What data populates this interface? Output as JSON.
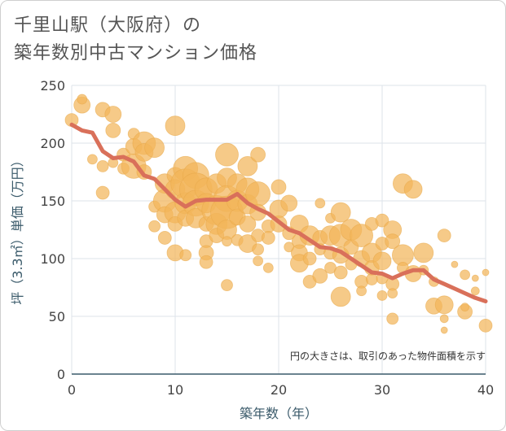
{
  "chart_data": {
    "type": "scatter",
    "title_line1": "千里山駅（大阪府）の",
    "title_line2": "築年数別中古マンション価格",
    "xlabel": "築年数（年）",
    "ylabel": "坪（3.3㎡）単価（万円）",
    "note": "円の大きさは、取引のあった物件面積を示す",
    "xlim": [
      0,
      40
    ],
    "ylim": [
      0,
      250
    ],
    "x_ticks": [
      "0",
      "10",
      "20",
      "30",
      "40"
    ],
    "y_ticks": [
      "0",
      "50",
      "100",
      "150",
      "200",
      "250"
    ],
    "grid": true,
    "colors": {
      "bubble": "#f2b55a",
      "trend": "#d9705a",
      "grid": "#dde3ea",
      "axis": "#3a5a6a"
    },
    "trend": {
      "x": [
        0,
        1,
        2,
        3,
        4,
        5,
        6,
        7,
        8,
        9,
        10,
        11,
        12,
        13,
        14,
        15,
        16,
        17,
        18,
        19,
        20,
        21,
        22,
        23,
        24,
        25,
        26,
        27,
        28,
        29,
        30,
        31,
        32,
        33,
        34,
        35,
        36,
        37,
        38,
        39,
        40
      ],
      "y": [
        216,
        211,
        209,
        193,
        187,
        188,
        184,
        172,
        169,
        160,
        151,
        145,
        150,
        151,
        151,
        151,
        156,
        148,
        143,
        139,
        132,
        125,
        122,
        116,
        110,
        109,
        106,
        100,
        94,
        88,
        87,
        83,
        87,
        90,
        90,
        82,
        78,
        74,
        70,
        66,
        63
      ]
    },
    "bubbles": [
      [
        0,
        220,
        8
      ],
      [
        1,
        233,
        10
      ],
      [
        1,
        238,
        6
      ],
      [
        2,
        186,
        6
      ],
      [
        3,
        229,
        9
      ],
      [
        3,
        180,
        7
      ],
      [
        3,
        157,
        8
      ],
      [
        4,
        225,
        10
      ],
      [
        4,
        211,
        9
      ],
      [
        4,
        183,
        6
      ],
      [
        5,
        190,
        8
      ],
      [
        5,
        178,
        7
      ],
      [
        6,
        208,
        7
      ],
      [
        6,
        197,
        10
      ],
      [
        6,
        180,
        15
      ],
      [
        7,
        200,
        14
      ],
      [
        7,
        192,
        11
      ],
      [
        7,
        175,
        9
      ],
      [
        8,
        196,
        12
      ],
      [
        8,
        145,
        7
      ],
      [
        8,
        128,
        7
      ],
      [
        9,
        165,
        12
      ],
      [
        9,
        150,
        14
      ],
      [
        9,
        138,
        10
      ],
      [
        9,
        118,
        8
      ],
      [
        10,
        215,
        12
      ],
      [
        10,
        172,
        10
      ],
      [
        10,
        160,
        12
      ],
      [
        10,
        140,
        13
      ],
      [
        10,
        130,
        9
      ],
      [
        10,
        105,
        10
      ],
      [
        11,
        178,
        15
      ],
      [
        11,
        165,
        18
      ],
      [
        11,
        148,
        13
      ],
      [
        11,
        135,
        10
      ],
      [
        11,
        103,
        7
      ],
      [
        12,
        172,
        16
      ],
      [
        12,
        160,
        20
      ],
      [
        12,
        148,
        16
      ],
      [
        12,
        135,
        12
      ],
      [
        13,
        160,
        14
      ],
      [
        13,
        148,
        12
      ],
      [
        13,
        130,
        9
      ],
      [
        13,
        115,
        8
      ],
      [
        13,
        105,
        9
      ],
      [
        13,
        97,
        8
      ],
      [
        14,
        165,
        12
      ],
      [
        14,
        142,
        18
      ],
      [
        14,
        130,
        13
      ],
      [
        14,
        120,
        9
      ],
      [
        15,
        190,
        14
      ],
      [
        15,
        170,
        12
      ],
      [
        15,
        152,
        16
      ],
      [
        15,
        140,
        20
      ],
      [
        15,
        125,
        12
      ],
      [
        15,
        115,
        6
      ],
      [
        15,
        77,
        7
      ],
      [
        16,
        165,
        12
      ],
      [
        16,
        150,
        13
      ],
      [
        16,
        136,
        10
      ],
      [
        16,
        116,
        7
      ],
      [
        17,
        180,
        12
      ],
      [
        17,
        160,
        14
      ],
      [
        17,
        147,
        12
      ],
      [
        17,
        130,
        10
      ],
      [
        17,
        113,
        11
      ],
      [
        18,
        190,
        9
      ],
      [
        18,
        156,
        15
      ],
      [
        18,
        140,
        10
      ],
      [
        18,
        120,
        8
      ],
      [
        18,
        108,
        7
      ],
      [
        18,
        98,
        6
      ],
      [
        19,
        128,
        8
      ],
      [
        19,
        118,
        8
      ],
      [
        19,
        92,
        6
      ],
      [
        20,
        162,
        9
      ],
      [
        20,
        143,
        11
      ],
      [
        20,
        130,
        10
      ],
      [
        21,
        148,
        10
      ],
      [
        21,
        122,
        8
      ],
      [
        21,
        110,
        6
      ],
      [
        22,
        130,
        11
      ],
      [
        22,
        115,
        9
      ],
      [
        22,
        105,
        10
      ],
      [
        22,
        96,
        11
      ],
      [
        23,
        80,
        8
      ],
      [
        23,
        120,
        12
      ],
      [
        23,
        100,
        8
      ],
      [
        24,
        148,
        6
      ],
      [
        24,
        118,
        9
      ],
      [
        24,
        108,
        7
      ],
      [
        24,
        85,
        9
      ],
      [
        25,
        120,
        12
      ],
      [
        25,
        105,
        8
      ],
      [
        25,
        92,
        7
      ],
      [
        25,
        135,
        6
      ],
      [
        26,
        140,
        12
      ],
      [
        26,
        120,
        14
      ],
      [
        26,
        103,
        10
      ],
      [
        26,
        88,
        8
      ],
      [
        26,
        67,
        12
      ],
      [
        27,
        125,
        13
      ],
      [
        27,
        110,
        9
      ],
      [
        27,
        95,
        7
      ],
      [
        28,
        120,
        14
      ],
      [
        28,
        100,
        10
      ],
      [
        28,
        80,
        8
      ],
      [
        28,
        72,
        6
      ],
      [
        29,
        130,
        8
      ],
      [
        29,
        105,
        12
      ],
      [
        29,
        92,
        9
      ],
      [
        29,
        82,
        7
      ],
      [
        30,
        133,
        8
      ],
      [
        30,
        113,
        8
      ],
      [
        30,
        98,
        11
      ],
      [
        30,
        83,
        7
      ],
      [
        30,
        68,
        6
      ],
      [
        31,
        125,
        11
      ],
      [
        31,
        115,
        9
      ],
      [
        31,
        78,
        8
      ],
      [
        31,
        70,
        6
      ],
      [
        31,
        48,
        7
      ],
      [
        32,
        165,
        12
      ],
      [
        32,
        103,
        13
      ],
      [
        32,
        92,
        7
      ],
      [
        33,
        160,
        11
      ],
      [
        33,
        87,
        10
      ],
      [
        34,
        105,
        12
      ],
      [
        34,
        90,
        6
      ],
      [
        35,
        59,
        10
      ],
      [
        35,
        80,
        6
      ],
      [
        36,
        120,
        8
      ],
      [
        36,
        60,
        11
      ],
      [
        36,
        48,
        5
      ],
      [
        36,
        38,
        4
      ],
      [
        37,
        95,
        4
      ],
      [
        38,
        86,
        6
      ],
      [
        38,
        54,
        9
      ],
      [
        38,
        58,
        5
      ],
      [
        39,
        72,
        5
      ],
      [
        39,
        83,
        4
      ],
      [
        40,
        88,
        4
      ],
      [
        40,
        42,
        8
      ]
    ]
  }
}
